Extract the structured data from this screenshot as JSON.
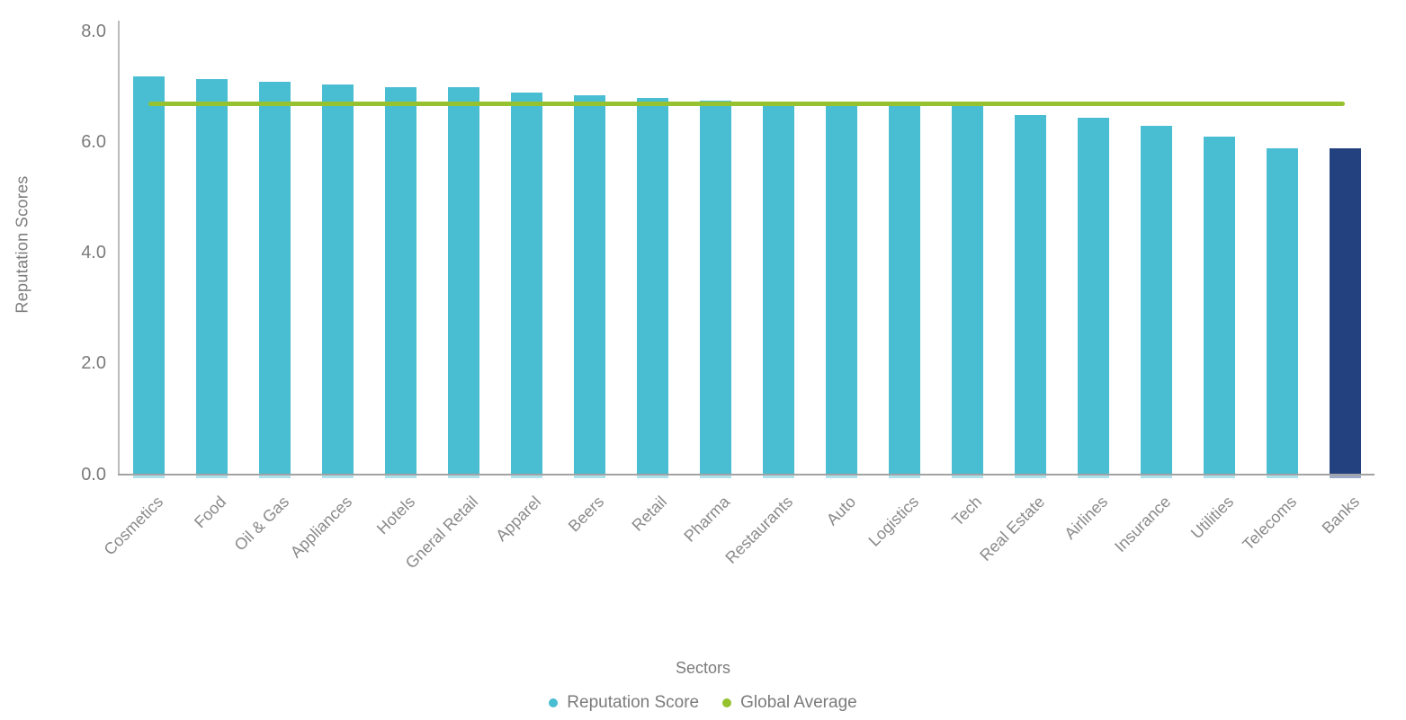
{
  "chart": {
    "y_axis": {
      "title": "Reputation Scores",
      "tick_labels": [
        "0.0",
        "2.0",
        "4.0",
        "6.0",
        "8.0"
      ]
    },
    "x_axis": {
      "title": "Sectors"
    },
    "legend": [
      {
        "label": "Reputation Score",
        "color": "#49bdd2",
        "marker": "dot-icon"
      },
      {
        "label": "Global Average",
        "color": "#95c22e",
        "marker": "dot-icon"
      }
    ],
    "colors": {
      "bar": "#49bdd2",
      "highlight_bar": "#24417f",
      "average_line": "#95c22e",
      "axis_text": "#7b7b7b"
    }
  },
  "chart_data": {
    "type": "bar",
    "title": "",
    "xlabel": "Sectors",
    "ylabel": "Reputation Scores",
    "ylim": [
      0,
      8
    ],
    "y_ticks": [
      0.0,
      2.0,
      4.0,
      6.0,
      8.0
    ],
    "grid": false,
    "legend_position": "bottom",
    "categories": [
      "Cosmetics",
      "Food",
      "Oil & Gas",
      "Appliances",
      "Hotels",
      "Gneral Retail",
      "Apparel",
      "Beers",
      "Retail",
      "Pharma",
      "Restaurants",
      "Auto",
      "Logistics",
      "Tech",
      "Real Estate",
      "Airlines",
      "Insurance",
      "Utilities",
      "Telecoms",
      "Banks"
    ],
    "series": [
      {
        "name": "Reputation Score",
        "type": "bar",
        "values": [
          7.2,
          7.15,
          7.1,
          7.05,
          7.0,
          7.0,
          6.9,
          6.85,
          6.8,
          6.75,
          6.7,
          6.7,
          6.7,
          6.7,
          6.5,
          6.45,
          6.3,
          6.1,
          5.9,
          5.9
        ],
        "color": "#49bdd2",
        "highlight": {
          "category": "Banks",
          "index": 19,
          "color": "#24417f"
        }
      },
      {
        "name": "Global Average",
        "type": "hline",
        "value": 6.7,
        "color": "#95c22e"
      }
    ]
  }
}
